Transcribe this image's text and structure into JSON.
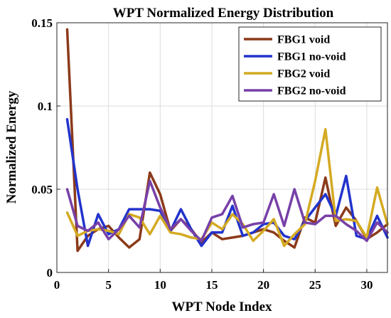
{
  "chart_data": {
    "type": "line",
    "title": "WPT Normalized Energy Distribution",
    "xlabel": "WPT Node Index",
    "ylabel": "Normalized Energy",
    "xlim": [
      0,
      32
    ],
    "ylim": [
      0,
      0.15
    ],
    "xticks": [
      0,
      5,
      10,
      15,
      20,
      25,
      30
    ],
    "yticks": [
      0,
      0.05,
      0.1,
      0.15
    ],
    "ytick_labels": [
      "0",
      "0.05",
      "0.1",
      "0.15"
    ],
    "grid": true,
    "legend_position": "top-right",
    "x": [
      1,
      2,
      3,
      4,
      5,
      6,
      7,
      8,
      9,
      10,
      11,
      12,
      13,
      14,
      15,
      16,
      17,
      18,
      19,
      20,
      21,
      22,
      23,
      24,
      25,
      26,
      27,
      28,
      29,
      30,
      31,
      32
    ],
    "series": [
      {
        "name": "FBG1 void",
        "color": "#8B3A1A",
        "values": [
          0.146,
          0.013,
          0.022,
          0.026,
          0.028,
          0.021,
          0.015,
          0.02,
          0.06,
          0.047,
          0.025,
          0.032,
          0.026,
          0.018,
          0.024,
          0.02,
          0.021,
          0.022,
          0.024,
          0.026,
          0.024,
          0.019,
          0.015,
          0.033,
          0.03,
          0.057,
          0.028,
          0.039,
          0.031,
          0.02,
          0.024,
          0.029
        ]
      },
      {
        "name": "FBG1 no-void",
        "color": "#2233CC",
        "values": [
          0.092,
          0.05,
          0.016,
          0.035,
          0.023,
          0.026,
          0.038,
          0.038,
          0.038,
          0.037,
          0.025,
          0.038,
          0.026,
          0.016,
          0.024,
          0.024,
          0.04,
          0.022,
          0.024,
          0.029,
          0.03,
          0.022,
          0.02,
          0.031,
          0.039,
          0.047,
          0.034,
          0.058,
          0.022,
          0.02,
          0.034,
          0.021
        ]
      },
      {
        "name": "FBG2 void",
        "color": "#D4AA22",
        "values": [
          0.036,
          0.022,
          0.025,
          0.026,
          0.025,
          0.023,
          0.035,
          0.033,
          0.023,
          0.034,
          0.024,
          0.023,
          0.021,
          0.02,
          0.03,
          0.026,
          0.035,
          0.029,
          0.019,
          0.025,
          0.032,
          0.016,
          0.023,
          0.029,
          0.055,
          0.086,
          0.031,
          0.032,
          0.031,
          0.021,
          0.051,
          0.029
        ]
      },
      {
        "name": "FBG2 no-void",
        "color": "#7740A8",
        "values": [
          0.05,
          0.028,
          0.025,
          0.03,
          0.02,
          0.026,
          0.034,
          0.027,
          0.055,
          0.039,
          0.026,
          0.032,
          0.025,
          0.019,
          0.033,
          0.035,
          0.046,
          0.027,
          0.029,
          0.03,
          0.047,
          0.028,
          0.05,
          0.03,
          0.029,
          0.034,
          0.034,
          0.029,
          0.025,
          0.019,
          0.03,
          0.024
        ]
      }
    ]
  }
}
